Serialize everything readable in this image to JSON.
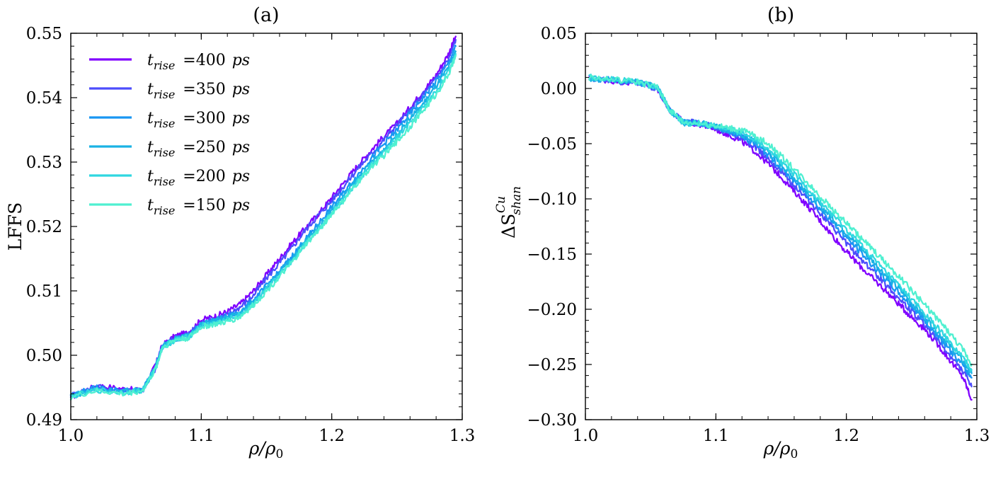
{
  "chart_data": [
    {
      "type": "line",
      "title": "(a)",
      "xlabel": "ρ/ρ0",
      "ylabel": "LFFS",
      "xlim": [
        1.0,
        1.3
      ],
      "ylim": [
        0.49,
        0.55
      ],
      "xticks": [
        "1.0",
        "1.1",
        "1.2",
        "1.3"
      ],
      "yticks": [
        "0.49",
        "0.50",
        "0.51",
        "0.52",
        "0.53",
        "0.54",
        "0.55"
      ],
      "grid": false,
      "legend_position": "top-left",
      "series": [
        {
          "name": "t_rise =400 ps",
          "color": "#8000ff",
          "x": [
            1.0,
            1.02,
            1.04,
            1.055,
            1.065,
            1.07,
            1.08,
            1.09,
            1.1,
            1.11,
            1.12,
            1.13,
            1.14,
            1.15,
            1.16,
            1.17,
            1.18,
            1.19,
            1.2,
            1.21,
            1.22,
            1.23,
            1.24,
            1.25,
            1.26,
            1.27,
            1.28,
            1.29,
            1.295
          ],
          "y": [
            0.4935,
            0.4953,
            0.4948,
            0.4945,
            0.4985,
            0.5015,
            0.503,
            0.5035,
            0.5055,
            0.506,
            0.5068,
            0.508,
            0.51,
            0.5125,
            0.515,
            0.5175,
            0.5198,
            0.522,
            0.5245,
            0.527,
            0.5295,
            0.5318,
            0.534,
            0.536,
            0.5385,
            0.541,
            0.5435,
            0.547,
            0.5495
          ]
        },
        {
          "name": "t_rise =350 ps",
          "color": "#4d4dfc",
          "x": [
            1.0,
            1.02,
            1.04,
            1.055,
            1.065,
            1.07,
            1.08,
            1.09,
            1.1,
            1.11,
            1.12,
            1.13,
            1.14,
            1.15,
            1.16,
            1.17,
            1.18,
            1.19,
            1.2,
            1.21,
            1.22,
            1.23,
            1.24,
            1.25,
            1.26,
            1.27,
            1.28,
            1.29,
            1.295
          ],
          "y": [
            0.4938,
            0.4952,
            0.4945,
            0.4945,
            0.498,
            0.5012,
            0.5028,
            0.5033,
            0.505,
            0.5056,
            0.5063,
            0.5075,
            0.5093,
            0.512,
            0.5143,
            0.5168,
            0.5195,
            0.5218,
            0.524,
            0.5265,
            0.529,
            0.5312,
            0.5335,
            0.5358,
            0.538,
            0.5405,
            0.543,
            0.5462,
            0.549
          ]
        },
        {
          "name": "t_rise =300 ps",
          "color": "#1996f3",
          "x": [
            1.0,
            1.02,
            1.04,
            1.055,
            1.065,
            1.07,
            1.08,
            1.09,
            1.1,
            1.11,
            1.12,
            1.13,
            1.14,
            1.15,
            1.16,
            1.17,
            1.18,
            1.19,
            1.2,
            1.21,
            1.22,
            1.23,
            1.24,
            1.25,
            1.26,
            1.27,
            1.28,
            1.29,
            1.295
          ],
          "y": [
            0.4938,
            0.495,
            0.4945,
            0.4946,
            0.4982,
            0.5012,
            0.5026,
            0.503,
            0.5048,
            0.5054,
            0.506,
            0.5068,
            0.5085,
            0.5108,
            0.513,
            0.5155,
            0.518,
            0.5205,
            0.523,
            0.5255,
            0.528,
            0.5305,
            0.5328,
            0.535,
            0.5375,
            0.54,
            0.5425,
            0.5455,
            0.548
          ]
        },
        {
          "name": "t_rise =250 ps",
          "color": "#1ab2e4",
          "x": [
            1.0,
            1.02,
            1.04,
            1.055,
            1.065,
            1.07,
            1.08,
            1.09,
            1.1,
            1.11,
            1.12,
            1.13,
            1.14,
            1.15,
            1.16,
            1.17,
            1.18,
            1.19,
            1.2,
            1.21,
            1.22,
            1.23,
            1.24,
            1.25,
            1.26,
            1.27,
            1.28,
            1.29,
            1.295
          ],
          "y": [
            0.4937,
            0.4948,
            0.4944,
            0.4946,
            0.4982,
            0.5014,
            0.5025,
            0.503,
            0.5048,
            0.5053,
            0.5058,
            0.5066,
            0.5083,
            0.5105,
            0.5128,
            0.5152,
            0.5178,
            0.52,
            0.5225,
            0.525,
            0.5275,
            0.5298,
            0.532,
            0.5343,
            0.5368,
            0.539,
            0.5418,
            0.5448,
            0.5472
          ]
        },
        {
          "name": "t_rise =200 ps",
          "color": "#2fd7e0",
          "x": [
            1.0,
            1.02,
            1.04,
            1.055,
            1.065,
            1.07,
            1.08,
            1.09,
            1.1,
            1.11,
            1.12,
            1.13,
            1.14,
            1.15,
            1.16,
            1.17,
            1.18,
            1.19,
            1.2,
            1.21,
            1.22,
            1.23,
            1.24,
            1.25,
            1.26,
            1.27,
            1.28,
            1.29,
            1.295
          ],
          "y": [
            0.4936,
            0.4946,
            0.4942,
            0.4946,
            0.498,
            0.5012,
            0.5024,
            0.5028,
            0.5046,
            0.505,
            0.5055,
            0.5063,
            0.508,
            0.5102,
            0.5125,
            0.5148,
            0.5175,
            0.5196,
            0.5222,
            0.5245,
            0.527,
            0.5295,
            0.5315,
            0.5338,
            0.536,
            0.5385,
            0.541,
            0.5442,
            0.5468
          ]
        },
        {
          "name": "t_rise =150 ps",
          "color": "#4ff0d1",
          "x": [
            1.0,
            1.02,
            1.04,
            1.055,
            1.065,
            1.07,
            1.08,
            1.09,
            1.1,
            1.11,
            1.12,
            1.13,
            1.14,
            1.15,
            1.16,
            1.17,
            1.18,
            1.19,
            1.2,
            1.21,
            1.22,
            1.23,
            1.24,
            1.25,
            1.26,
            1.27,
            1.28,
            1.29,
            1.295
          ],
          "y": [
            0.4935,
            0.4945,
            0.494,
            0.4945,
            0.4978,
            0.5012,
            0.5024,
            0.5027,
            0.5044,
            0.5048,
            0.5052,
            0.506,
            0.5078,
            0.51,
            0.5122,
            0.5145,
            0.5172,
            0.5194,
            0.522,
            0.5242,
            0.5268,
            0.5292,
            0.531,
            0.5332,
            0.5355,
            0.538,
            0.5405,
            0.5438,
            0.5465
          ]
        }
      ]
    },
    {
      "type": "line",
      "title": "(b)",
      "xlabel": "ρ/ρ0",
      "ylabel": "ΔS_shan^Cu",
      "xlim": [
        1.0,
        1.3
      ],
      "ylim": [
        -0.3,
        0.05
      ],
      "xticks": [
        "1.0",
        "1.1",
        "1.2",
        "1.3"
      ],
      "yticks": [
        "0.05",
        "0.00",
        "−0.05",
        "−0.10",
        "−0.15",
        "−0.20",
        "−0.25",
        "−0.30"
      ],
      "grid": false,
      "series": [
        {
          "name": "t_rise =400 ps",
          "color": "#8000ff",
          "x": [
            1.003,
            1.02,
            1.04,
            1.055,
            1.065,
            1.075,
            1.09,
            1.1,
            1.11,
            1.12,
            1.13,
            1.14,
            1.15,
            1.16,
            1.17,
            1.18,
            1.19,
            1.2,
            1.21,
            1.22,
            1.23,
            1.24,
            1.25,
            1.26,
            1.27,
            1.28,
            1.29,
            1.296
          ],
          "y": [
            0.009,
            0.007,
            0.005,
            0.0,
            -0.02,
            -0.03,
            -0.033,
            -0.037,
            -0.042,
            -0.048,
            -0.057,
            -0.068,
            -0.08,
            -0.093,
            -0.106,
            -0.12,
            -0.134,
            -0.148,
            -0.16,
            -0.172,
            -0.183,
            -0.195,
            -0.207,
            -0.218,
            -0.232,
            -0.247,
            -0.263,
            -0.282
          ]
        },
        {
          "name": "t_rise =350 ps",
          "color": "#4d4dfc",
          "x": [
            1.003,
            1.02,
            1.04,
            1.055,
            1.065,
            1.075,
            1.09,
            1.1,
            1.11,
            1.12,
            1.13,
            1.14,
            1.15,
            1.16,
            1.17,
            1.18,
            1.19,
            1.2,
            1.21,
            1.22,
            1.23,
            1.24,
            1.25,
            1.26,
            1.27,
            1.28,
            1.29,
            1.296
          ],
          "y": [
            0.01,
            0.007,
            0.005,
            0.0,
            -0.02,
            -0.03,
            -0.032,
            -0.036,
            -0.04,
            -0.045,
            -0.053,
            -0.063,
            -0.075,
            -0.088,
            -0.1,
            -0.113,
            -0.127,
            -0.14,
            -0.153,
            -0.165,
            -0.177,
            -0.19,
            -0.202,
            -0.214,
            -0.228,
            -0.243,
            -0.257,
            -0.27
          ]
        },
        {
          "name": "t_rise =300 ps",
          "color": "#1996f3",
          "x": [
            1.003,
            1.02,
            1.04,
            1.055,
            1.065,
            1.075,
            1.09,
            1.1,
            1.11,
            1.12,
            1.13,
            1.14,
            1.15,
            1.16,
            1.17,
            1.18,
            1.19,
            1.2,
            1.21,
            1.22,
            1.23,
            1.24,
            1.25,
            1.26,
            1.27,
            1.28,
            1.29,
            1.296
          ],
          "y": [
            0.009,
            0.008,
            0.006,
            0.001,
            -0.02,
            -0.03,
            -0.032,
            -0.035,
            -0.039,
            -0.043,
            -0.05,
            -0.06,
            -0.072,
            -0.084,
            -0.096,
            -0.109,
            -0.122,
            -0.135,
            -0.147,
            -0.16,
            -0.173,
            -0.185,
            -0.197,
            -0.21,
            -0.224,
            -0.238,
            -0.252,
            -0.262
          ]
        },
        {
          "name": "t_rise =250 ps",
          "color": "#1ab2e4",
          "x": [
            1.003,
            1.02,
            1.04,
            1.055,
            1.065,
            1.075,
            1.09,
            1.1,
            1.11,
            1.12,
            1.13,
            1.14,
            1.15,
            1.16,
            1.17,
            1.18,
            1.19,
            1.2,
            1.21,
            1.22,
            1.23,
            1.24,
            1.25,
            1.26,
            1.27,
            1.28,
            1.29,
            1.296
          ],
          "y": [
            0.009,
            0.008,
            0.006,
            0.001,
            -0.02,
            -0.031,
            -0.032,
            -0.034,
            -0.038,
            -0.042,
            -0.048,
            -0.057,
            -0.069,
            -0.081,
            -0.093,
            -0.106,
            -0.118,
            -0.131,
            -0.143,
            -0.156,
            -0.169,
            -0.181,
            -0.194,
            -0.207,
            -0.22,
            -0.234,
            -0.248,
            -0.258
          ]
        },
        {
          "name": "t_rise =200 ps",
          "color": "#2fd7e0",
          "x": [
            1.003,
            1.02,
            1.04,
            1.055,
            1.065,
            1.075,
            1.09,
            1.1,
            1.11,
            1.12,
            1.13,
            1.14,
            1.15,
            1.16,
            1.17,
            1.18,
            1.19,
            1.2,
            1.21,
            1.22,
            1.23,
            1.24,
            1.25,
            1.26,
            1.27,
            1.28,
            1.29,
            1.296
          ],
          "y": [
            0.01,
            0.008,
            0.006,
            0.001,
            -0.02,
            -0.031,
            -0.032,
            -0.034,
            -0.037,
            -0.04,
            -0.046,
            -0.054,
            -0.066,
            -0.078,
            -0.09,
            -0.103,
            -0.115,
            -0.128,
            -0.14,
            -0.153,
            -0.166,
            -0.178,
            -0.191,
            -0.204,
            -0.217,
            -0.231,
            -0.245,
            -0.255
          ]
        },
        {
          "name": "t_rise =150 ps",
          "color": "#4ff0d1",
          "x": [
            1.003,
            1.02,
            1.04,
            1.055,
            1.065,
            1.075,
            1.09,
            1.1,
            1.11,
            1.12,
            1.13,
            1.14,
            1.15,
            1.16,
            1.17,
            1.18,
            1.19,
            1.2,
            1.21,
            1.22,
            1.23,
            1.24,
            1.25,
            1.26,
            1.27,
            1.28,
            1.29,
            1.296
          ],
          "y": [
            0.01,
            0.008,
            0.006,
            0.001,
            -0.02,
            -0.031,
            -0.032,
            -0.034,
            -0.036,
            -0.038,
            -0.043,
            -0.05,
            -0.061,
            -0.073,
            -0.085,
            -0.098,
            -0.11,
            -0.122,
            -0.134,
            -0.146,
            -0.158,
            -0.17,
            -0.183,
            -0.196,
            -0.209,
            -0.223,
            -0.238,
            -0.25
          ]
        }
      ]
    }
  ]
}
